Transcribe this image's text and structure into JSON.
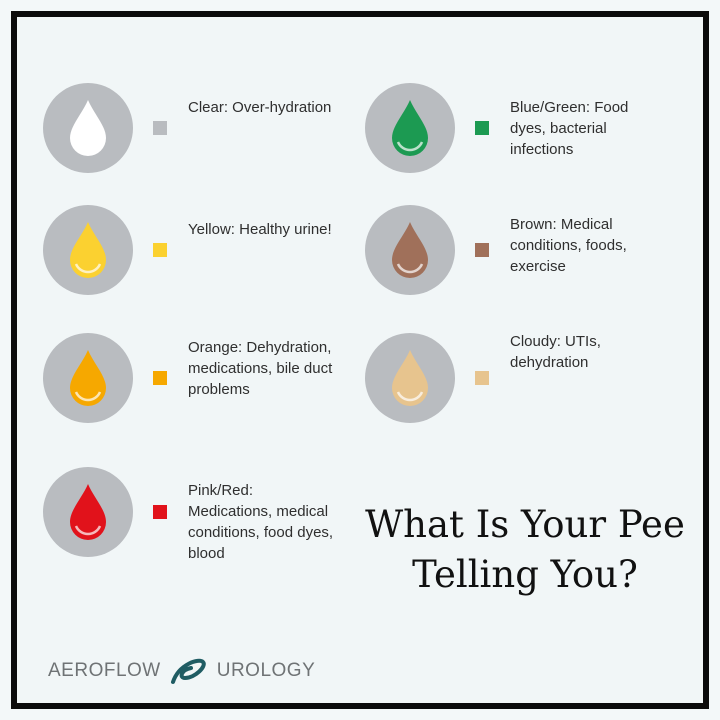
{
  "items": [
    {
      "label": "Clear: Over-hydration",
      "color": "#ffffff",
      "swatch": "#b9bcc0"
    },
    {
      "label": "Yellow: Healthy urine!",
      "color": "#fbd130",
      "swatch": "#fbd130"
    },
    {
      "label": "Orange: Dehydration, medications, bile duct problems",
      "color": "#f6a800",
      "swatch": "#f6a800"
    },
    {
      "label": "Pink/Red: Medications, medical conditions, food dyes, blood",
      "color": "#e1121b",
      "swatch": "#e1121b"
    },
    {
      "label": "Blue/Green: Food dyes, bacterial infections",
      "color": "#1c9a52",
      "swatch": "#1c9a52"
    },
    {
      "label": "Brown: Medical conditions, foods, exercise",
      "color": "#a0705a",
      "swatch": "#a0705a"
    },
    {
      "label": "Cloudy: UTIs, dehydration",
      "color": "#e7c48e",
      "swatch": "#e7c48e"
    }
  ],
  "title": "What Is Your Pee Telling You?",
  "logo": {
    "left": "AEROFLOW",
    "right": "UROLOGY",
    "color": "#1f5c63"
  }
}
